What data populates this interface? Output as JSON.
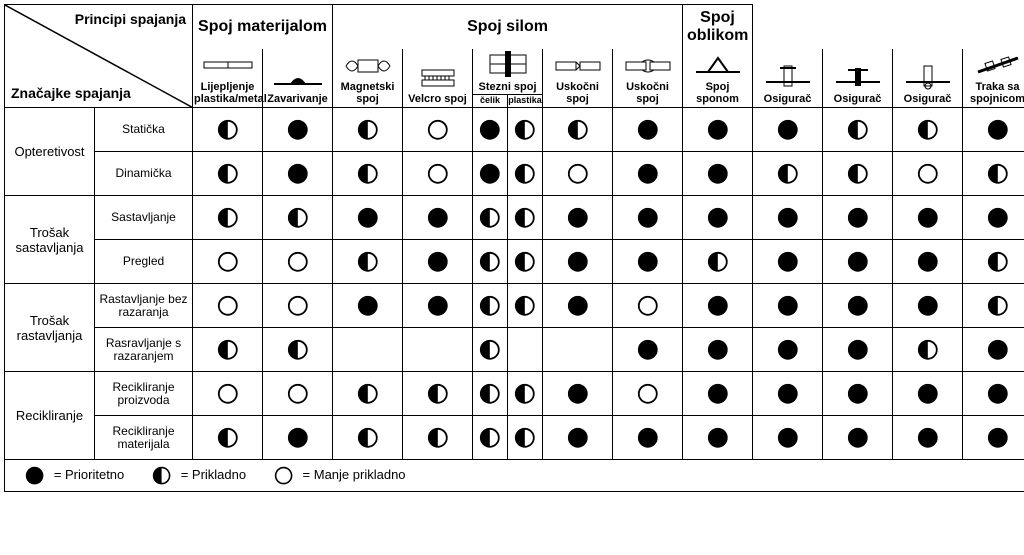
{
  "header": {
    "diag_top": "Principi spajanja",
    "diag_bottom": "Značajke spajanja",
    "groups": [
      {
        "label": "Spoj materijalom",
        "span": 2
      },
      {
        "label": "Spoj silom",
        "span": 5
      },
      {
        "label": "Spoj oblikom",
        "span": 6
      }
    ],
    "methods": [
      {
        "label": "Lijepljenje plastika/metal"
      },
      {
        "label": "Zavarivanje"
      },
      {
        "label": "Magnetski spoj"
      },
      {
        "label": "Velcro spoj"
      },
      {
        "label_a": "Stezni spoj",
        "sub_a": "čelik",
        "sub_b": "plastika",
        "split": true
      },
      {
        "label": "Uskočni spoj"
      },
      {
        "label": "Uskočni spoj"
      },
      {
        "label": "Spoj sponom"
      },
      {
        "label": "Osigurač"
      },
      {
        "label": "Osigurač"
      },
      {
        "label": "Osigurač"
      },
      {
        "label": "Traka sa spojnicom"
      }
    ]
  },
  "rowGroups": [
    {
      "label": "Opteretivost",
      "rows": [
        {
          "label": "Statička",
          "marks": [
            "half",
            "full",
            "half",
            "empty",
            "full",
            "half",
            "half",
            "full",
            "full",
            "full",
            "half",
            "half",
            "full"
          ]
        },
        {
          "label": "Dinamička",
          "marks": [
            "half",
            "full",
            "half",
            "empty",
            "full",
            "half",
            "empty",
            "full",
            "full",
            "half",
            "half",
            "empty",
            "half"
          ]
        }
      ]
    },
    {
      "label": "Trošak sastavljanja",
      "rows": [
        {
          "label": "Sastavljanje",
          "marks": [
            "half",
            "half",
            "full",
            "full",
            "half",
            "half",
            "full",
            "full",
            "full",
            "full",
            "full",
            "full",
            "full"
          ]
        },
        {
          "label": "Pregled",
          "marks": [
            "empty",
            "empty",
            "half",
            "full",
            "half",
            "half",
            "full",
            "full",
            "half",
            "full",
            "full",
            "full",
            "half"
          ]
        }
      ]
    },
    {
      "label": "Trošak rastavljanja",
      "rows": [
        {
          "label": "Rastavljanje bez razaranja",
          "marks": [
            "empty",
            "empty",
            "full",
            "full",
            "half",
            "half",
            "full",
            "empty",
            "full",
            "full",
            "full",
            "full",
            "half"
          ]
        },
        {
          "label": "Rasravljanje s razaranjem",
          "marks": [
            "half",
            "half",
            "",
            "",
            "half",
            "",
            "",
            "full",
            "full",
            "full",
            "full",
            "half",
            "full"
          ]
        }
      ]
    },
    {
      "label": "Recikliranje",
      "rows": [
        {
          "label": "Recikliranje proizvoda",
          "marks": [
            "empty",
            "empty",
            "half",
            "half",
            "half",
            "half",
            "full",
            "empty",
            "full",
            "full",
            "full",
            "full",
            "full"
          ]
        },
        {
          "label": "Recikliranje materijala",
          "marks": [
            "half",
            "full",
            "half",
            "half",
            "half",
            "half",
            "full",
            "full",
            "full",
            "full",
            "full",
            "full",
            "full"
          ]
        }
      ]
    }
  ],
  "legend": {
    "full": "= Prioritetno",
    "half": "= Prikladno",
    "empty": "= Manje prikladno"
  },
  "style": {
    "mark_radius": 9,
    "mark_stroke": 1.8
  }
}
